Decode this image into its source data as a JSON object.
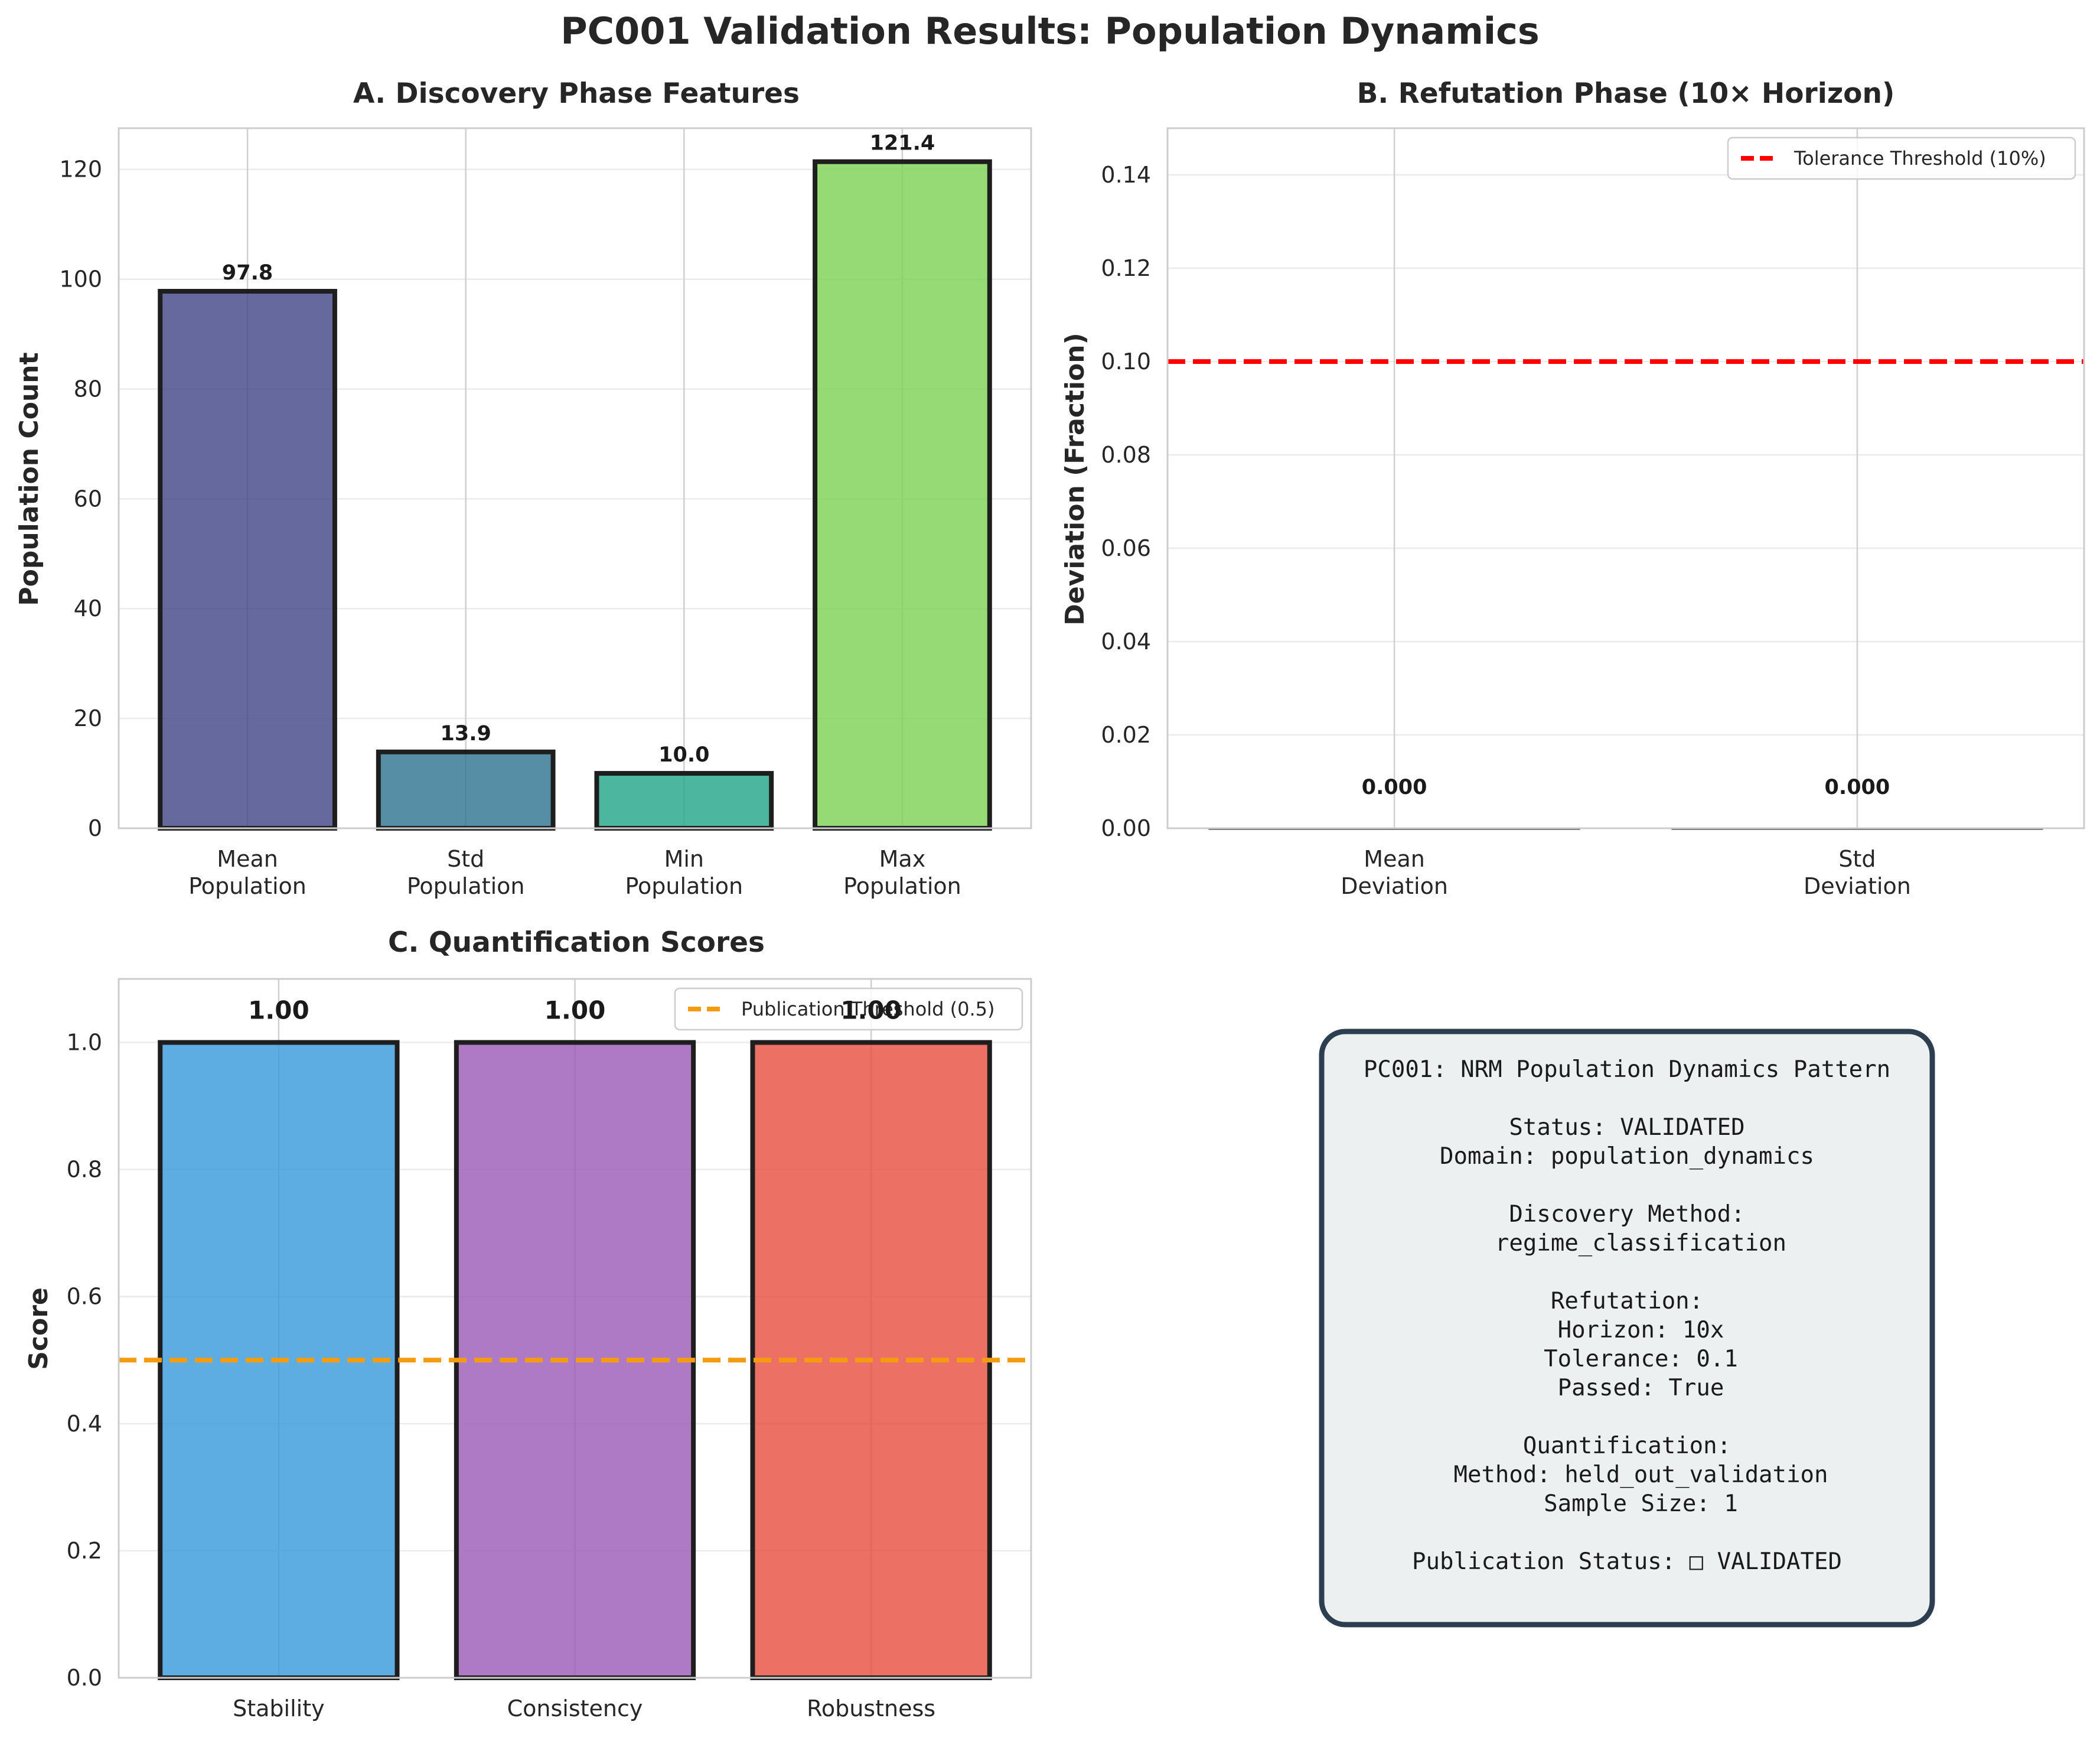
{
  "figure": {
    "title": "PC001 Validation Results: Population Dynamics"
  },
  "chart_data": [
    {
      "type": "bar",
      "title": "A. Discovery Phase Features",
      "xlabel": "",
      "ylabel": "Population Count",
      "categories": [
        [
          "Mean",
          "Population"
        ],
        [
          "Std",
          "Population"
        ],
        [
          "Min",
          "Population"
        ],
        [
          "Max",
          "Population"
        ]
      ],
      "values": [
        97.8,
        13.9,
        10.0,
        121.4
      ],
      "value_labels": [
        "97.8",
        "13.9",
        "10.0",
        "121.4"
      ],
      "colors": [
        "#3e4385",
        "#2c728e",
        "#20a486",
        "#7ad151"
      ],
      "ylim": [
        0,
        127.5
      ],
      "yticks": [
        0,
        20,
        40,
        60,
        80,
        100,
        120
      ],
      "ytick_labels": [
        "0",
        "20",
        "40",
        "60",
        "80",
        "100",
        "120"
      ],
      "grid": true
    },
    {
      "type": "bar",
      "title": "B. Refutation Phase (10× Horizon)",
      "xlabel": "",
      "ylabel": "Deviation (Fraction)",
      "categories": [
        [
          "Mean",
          "Deviation"
        ],
        [
          "Std",
          "Deviation"
        ]
      ],
      "values": [
        0.0,
        0.0
      ],
      "value_labels": [
        "0.000",
        "0.000"
      ],
      "ylim": [
        0,
        0.15
      ],
      "yticks": [
        0,
        0.02,
        0.04,
        0.06,
        0.08,
        0.1,
        0.12,
        0.14
      ],
      "ytick_labels": [
        "0.00",
        "0.02",
        "0.04",
        "0.06",
        "0.08",
        "0.10",
        "0.12",
        "0.14"
      ],
      "reference_line": {
        "y": 0.1,
        "label": "Tolerance Threshold (10%)",
        "color": "#ff0000"
      },
      "legend_position": "top-right",
      "grid": true
    },
    {
      "type": "bar",
      "title": "C. Quantification Scores",
      "xlabel": "",
      "ylabel": "Score",
      "categories": [
        [
          "Stability"
        ],
        [
          "Consistency"
        ],
        [
          "Robustness"
        ]
      ],
      "values": [
        1.0,
        1.0,
        1.0
      ],
      "value_labels": [
        "1.00",
        "1.00",
        "1.00"
      ],
      "colors": [
        "#3498db",
        "#9b59b6",
        "#e74c3c"
      ],
      "ylim": [
        0,
        1.1
      ],
      "yticks": [
        0,
        0.2,
        0.4,
        0.6,
        0.8,
        1.0
      ],
      "ytick_labels": [
        "0.0",
        "0.2",
        "0.4",
        "0.6",
        "0.8",
        "1.0"
      ],
      "reference_line": {
        "y": 0.5,
        "label": "Publication Threshold (0.5)",
        "color": "#f39c12"
      },
      "legend_position": "top-right",
      "grid": true
    }
  ],
  "info_box": {
    "lines": [
      "PC001: NRM Population Dynamics Pattern",
      "",
      "Status: VALIDATED",
      "Domain: population_dynamics",
      "",
      "Discovery Method:",
      "  regime_classification",
      "",
      "Refutation:",
      "  Horizon: 10x",
      "  Tolerance: 0.1",
      "  Passed: True",
      "",
      "Quantification:",
      "  Method: held_out_validation",
      "  Sample Size: 1",
      "",
      "Publication Status: □ VALIDATED"
    ]
  }
}
